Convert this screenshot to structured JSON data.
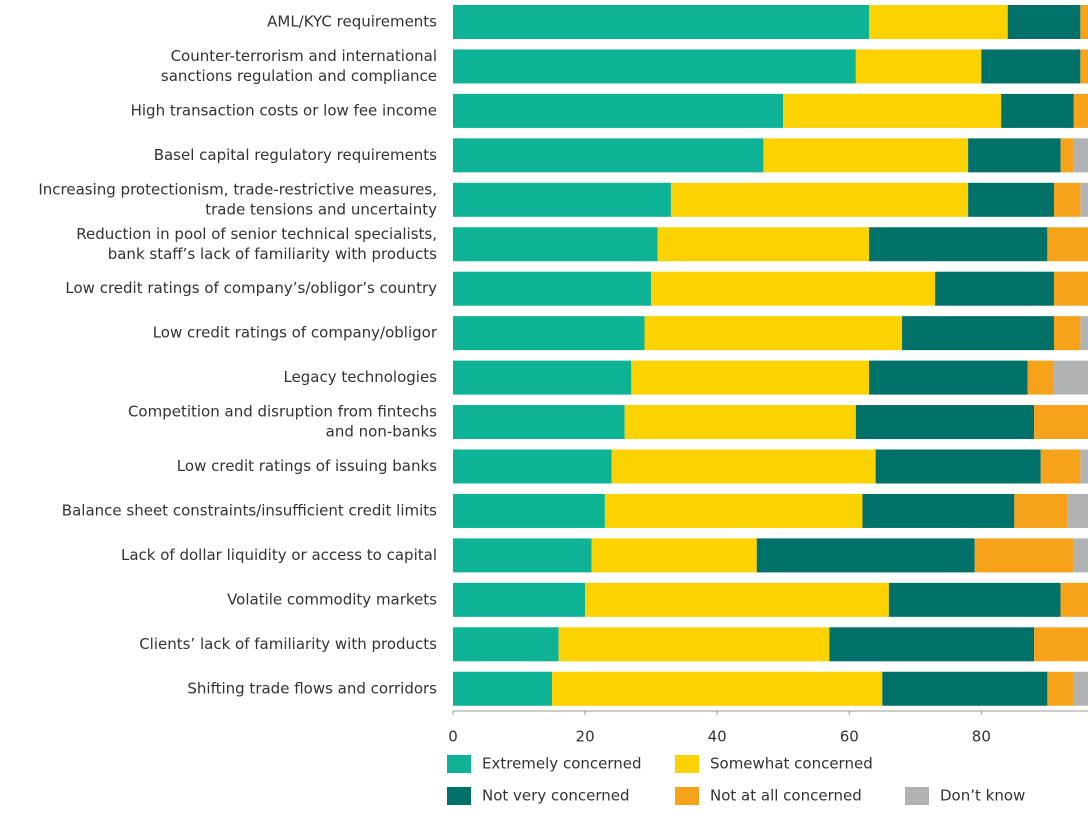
{
  "chart_data": {
    "type": "stacked_barh",
    "categories": [
      [
        "AML/KYC requirements"
      ],
      [
        "Counter-terrorism and international",
        "sanctions regulation and compliance"
      ],
      [
        "High transaction costs or low fee income"
      ],
      [
        "Basel capital regulatory requirements"
      ],
      [
        "Increasing protectionism, trade-restrictive measures,",
        "trade tensions and uncertainty"
      ],
      [
        "Reduction in pool of senior technical specialists,",
        "bank staff’s lack of familiarity with products"
      ],
      [
        "Low credit ratings of company’s/obligor’s country"
      ],
      [
        "Low credit ratings of company/obligor"
      ],
      [
        "Legacy technologies"
      ],
      [
        "Competition and disruption from fintechs",
        "and non-banks"
      ],
      [
        "Low credit ratings of issuing banks"
      ],
      [
        "Balance sheet constraints/insufficient credit limits"
      ],
      [
        "Lack of dollar liquidity or access to capital"
      ],
      [
        "Volatile commodity markets"
      ],
      [
        "Clients’ lack of familiarity with products"
      ],
      [
        "Shifting trade flows and corridors"
      ]
    ],
    "series": [
      {
        "name": "Extremely concerned",
        "color": "#0db394",
        "values": [
          63,
          61,
          50,
          47,
          33,
          31,
          30,
          29,
          27,
          26,
          24,
          23,
          21,
          20,
          16,
          15
        ]
      },
      {
        "name": "Somewhat concerned",
        "color": "#fcd200",
        "values": [
          21,
          19,
          33,
          31,
          45,
          32,
          43,
          39,
          36,
          35,
          40,
          39,
          25,
          46,
          41,
          50
        ]
      },
      {
        "name": "Not very concerned",
        "color": "#007168",
        "values": [
          11,
          15,
          11,
          14,
          13,
          27,
          18,
          23,
          24,
          27,
          25,
          23,
          33,
          26,
          31,
          25
        ]
      },
      {
        "name": "Not at all concerned",
        "color": "#f7a21b",
        "values": [
          2,
          2,
          3,
          2,
          4,
          10,
          9,
          4,
          4,
          12,
          6,
          8,
          15,
          8,
          12,
          4
        ]
      },
      {
        "name": "Don’t know",
        "color": "#b0b2b4",
        "values": [
          3,
          3,
          3,
          6,
          5,
          0,
          0,
          5,
          9,
          0,
          5,
          7,
          6,
          0,
          0,
          6
        ]
      }
    ],
    "xlim": [
      0,
      96
    ],
    "xticks": [
      0,
      20,
      40,
      60,
      80
    ]
  }
}
